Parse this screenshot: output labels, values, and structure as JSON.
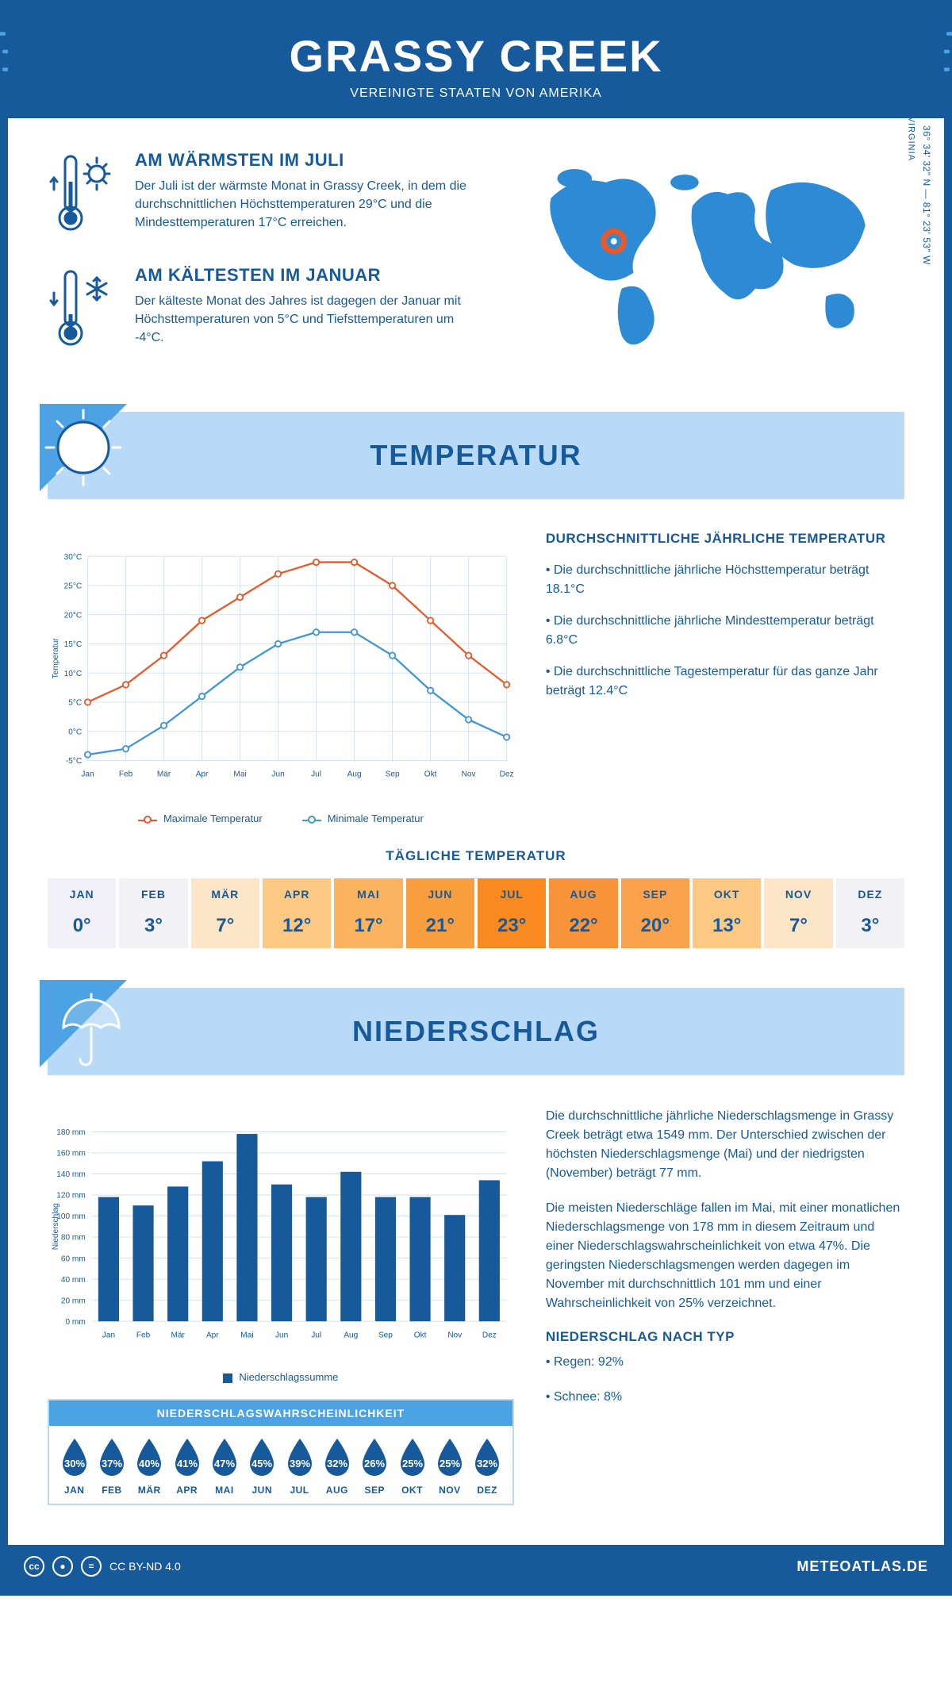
{
  "header": {
    "title": "GRASSY CREEK",
    "subtitle": "VEREINIGTE STAATEN VON AMERIKA"
  },
  "coords": "36° 34' 32\" N — 81° 23' 53\" W",
  "region": "VIRGINIA",
  "intro": {
    "warm": {
      "title": "AM WÄRMSTEN IM JULI",
      "text": "Der Juli ist der wärmste Monat in Grassy Creek, in dem die durchschnittlichen Höchsttemperaturen 29°C und die Mindesttemperaturen 17°C erreichen."
    },
    "cold": {
      "title": "AM KÄLTESTEN IM JANUAR",
      "text": "Der kälteste Monat des Jahres ist dagegen der Januar mit Höchsttemperaturen von 5°C und Tiefsttemperaturen um -4°C."
    }
  },
  "section_temp_title": "TEMPERATUR",
  "section_precip_title": "NIEDERSCHLAG",
  "temp_chart": {
    "type": "line",
    "months": [
      "Jan",
      "Feb",
      "Mär",
      "Apr",
      "Mai",
      "Jun",
      "Jul",
      "Aug",
      "Sep",
      "Okt",
      "Nov",
      "Dez"
    ],
    "max": [
      5,
      8,
      13,
      19,
      23,
      27,
      29,
      29,
      25,
      19,
      13,
      8
    ],
    "min": [
      -4,
      -3,
      1,
      6,
      11,
      15,
      17,
      17,
      13,
      7,
      2,
      -1
    ],
    "max_color": "#e8592a",
    "min_color": "#3f96d9",
    "grid_color": "#cfe0ed",
    "text_color": "#165a9c",
    "ylim": [
      -5,
      30
    ],
    "ytick_step": 5,
    "ytick_suffix": "°C",
    "ylabel": "Temperatur",
    "max_label": "Maximale Temperatur",
    "min_label": "Minimale Temperatur"
  },
  "temp_info": {
    "title": "DURCHSCHNITTLICHE JÄHRLICHE TEMPERATUR",
    "bullet1": "• Die durchschnittliche jährliche Höchsttemperatur beträgt 18.1°C",
    "bullet2": "• Die durchschnittliche jährliche Mindesttemperatur beträgt 6.8°C",
    "bullet3": "• Die durchschnittliche Tagestemperatur für das ganze Jahr beträgt 12.4°C"
  },
  "daily_temp": {
    "title": "TÄGLICHE TEMPERATUR",
    "months": [
      "JAN",
      "FEB",
      "MÄR",
      "APR",
      "MAI",
      "JUN",
      "JUL",
      "AUG",
      "SEP",
      "OKT",
      "NOV",
      "DEZ"
    ],
    "values": [
      "0°",
      "3°",
      "7°",
      "12°",
      "17°",
      "21°",
      "23°",
      "22°",
      "20°",
      "13°",
      "7°",
      "3°"
    ],
    "colors": [
      "#f1f0f7",
      "#f2f1f6",
      "#fde6c8",
      "#fcc985",
      "#fbb35f",
      "#f99e3e",
      "#f88a1f",
      "#f9933a",
      "#faa24c",
      "#fcc985",
      "#fde6c8",
      "#f2f1f6"
    ]
  },
  "precip_chart": {
    "type": "bar",
    "months": [
      "Jan",
      "Feb",
      "Mär",
      "Apr",
      "Mai",
      "Jun",
      "Jul",
      "Aug",
      "Sep",
      "Okt",
      "Nov",
      "Dez"
    ],
    "values": [
      118,
      110,
      128,
      152,
      178,
      130,
      118,
      142,
      118,
      118,
      101,
      134
    ],
    "bar_color": "#165a9c",
    "grid_color": "#cfe0ed",
    "text_color": "#165a9c",
    "ylim": [
      0,
      180
    ],
    "ytick_step": 20,
    "ytick_suffix": " mm",
    "ylabel": "Niederschlag",
    "legend_label": "Niederschlagssumme"
  },
  "precip_text": {
    "p1": "Die durchschnittliche jährliche Niederschlagsmenge in Grassy Creek beträgt etwa 1549 mm. Der Unterschied zwischen der höchsten Niederschlagsmenge (Mai) und der niedrigsten (November) beträgt 77 mm.",
    "p2": "Die meisten Niederschläge fallen im Mai, mit einer monatlichen Niederschlagsmenge von 178 mm in diesem Zeitraum und einer Niederschlagswahrscheinlichkeit von etwa 47%. Die geringsten Niederschlagsmengen werden dagegen im November mit durchschnittlich 101 mm und einer Wahrscheinlichkeit von 25% verzeichnet.",
    "type_title": "NIEDERSCHLAG NACH TYP",
    "type1": "• Regen: 92%",
    "type2": "• Schnee: 8%"
  },
  "prob": {
    "title": "NIEDERSCHLAGSWAHRSCHEINLICHKEIT",
    "months": [
      "JAN",
      "FEB",
      "MÄR",
      "APR",
      "MAI",
      "JUN",
      "JUL",
      "AUG",
      "SEP",
      "OKT",
      "NOV",
      "DEZ"
    ],
    "values": [
      "30%",
      "37%",
      "40%",
      "41%",
      "47%",
      "45%",
      "39%",
      "32%",
      "26%",
      "25%",
      "25%",
      "32%"
    ],
    "drop_color": "#165a9c"
  },
  "footer": {
    "license": "CC BY-ND 4.0",
    "site": "METEOATLAS.DE"
  },
  "colors": {
    "primary": "#165a9c",
    "light_blue": "#b9daf7",
    "mid_blue": "#4ca2e3"
  }
}
